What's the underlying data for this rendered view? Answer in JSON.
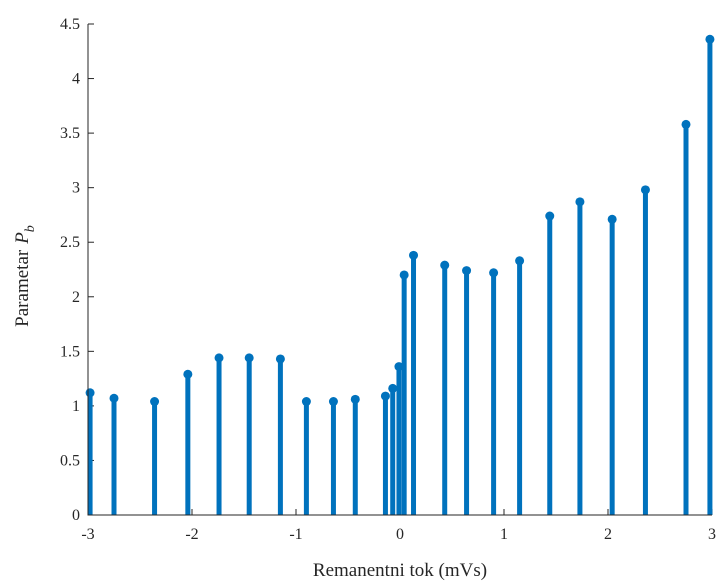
{
  "chart_data": {
    "type": "stem",
    "xlabel": "Remanentni tok (mVs)",
    "ylabel": "Parametar",
    "ylabel_symbol": "P",
    "ylabel_subscript": "b",
    "xlim": [
      -3,
      3
    ],
    "ylim": [
      0,
      4.5
    ],
    "xticks": [
      -3,
      -2,
      -1,
      0,
      1,
      2,
      3
    ],
    "yticks": [
      0,
      0.5,
      1,
      1.5,
      2,
      2.5,
      3,
      3.5,
      4,
      4.5
    ],
    "xtick_labels": [
      "-3",
      "-2",
      "-1",
      "0",
      "1",
      "2",
      "3"
    ],
    "ytick_labels": [
      "0",
      "0.5",
      "1",
      "1.5",
      "2",
      "2.5",
      "3",
      "3.5",
      "4",
      "4.5"
    ],
    "color": "#0072BD",
    "grid": false,
    "x": [
      -2.98,
      -2.75,
      -2.36,
      -2.04,
      -1.74,
      -1.45,
      -1.15,
      -0.9,
      -0.64,
      -0.43,
      -0.14,
      -0.07,
      -0.01,
      0.04,
      0.13,
      0.43,
      0.64,
      0.9,
      1.15,
      1.44,
      1.73,
      2.04,
      2.36,
      2.75,
      2.98
    ],
    "y": [
      1.12,
      1.07,
      1.04,
      1.29,
      1.44,
      1.44,
      1.43,
      1.04,
      1.04,
      1.06,
      1.09,
      1.16,
      1.36,
      2.2,
      2.38,
      2.29,
      2.24,
      2.22,
      2.33,
      2.74,
      2.87,
      2.71,
      2.98,
      3.58,
      4.36
    ]
  }
}
